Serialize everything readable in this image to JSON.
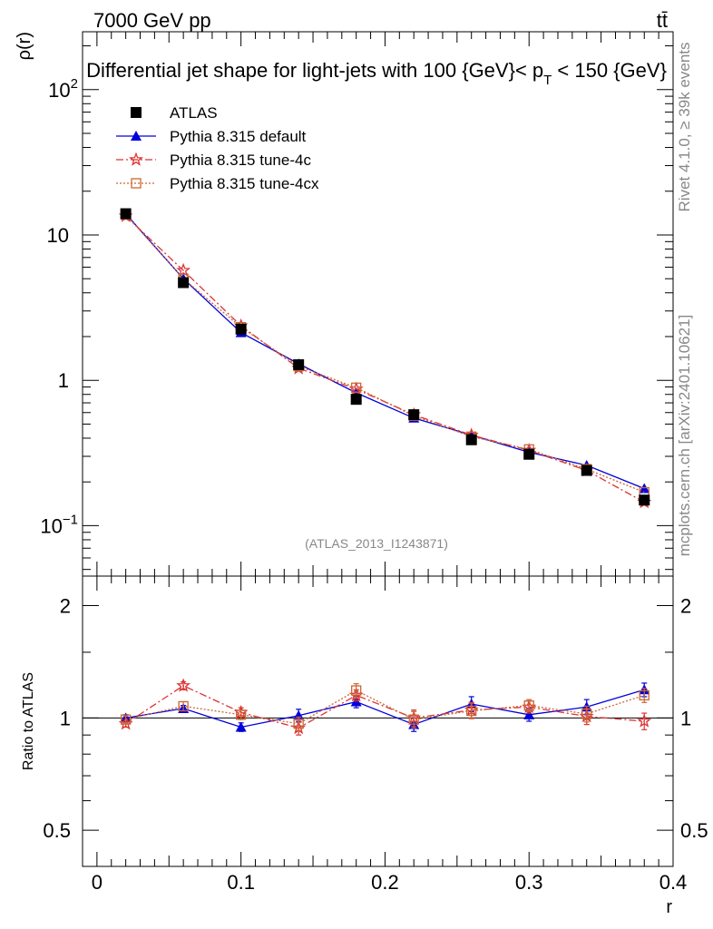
{
  "header": {
    "energy_label": "7000 GeV pp",
    "process_label": "tt̄"
  },
  "side": {
    "rivet_label": "Rivet 4.1.0, ≥ 39k events",
    "mcplots_label": "mcplots.cern.ch [arXiv:2401.10621]"
  },
  "chart_data": [
    {
      "type": "line",
      "title": "Differential jet shape for light-jets with 100 {GeV}< p_T < 150 {GeV}",
      "title_parts": {
        "main": "Differential jet shape for light-jets with 100 {GeV}< p",
        "sub": "T",
        "tail": " < 150 {GeV}"
      },
      "ylabel": "ρ(r)",
      "xlabel": "r",
      "yscale": "log",
      "xlim": [
        -0.01,
        0.4
      ],
      "ylim": [
        0.045,
        250
      ],
      "yticks": [
        {
          "value": 100,
          "label": "10",
          "sup": "2"
        },
        {
          "value": 10,
          "label": "10",
          "sup": ""
        },
        {
          "value": 1,
          "label": "1",
          "sup": ""
        },
        {
          "value": 0.1,
          "label": "10",
          "sup": "−1"
        }
      ],
      "watermark": "(ATLAS_2013_I1243871)",
      "x": [
        0.02,
        0.06,
        0.1,
        0.14,
        0.18,
        0.22,
        0.26,
        0.3,
        0.34,
        0.38
      ],
      "series": [
        {
          "name": "ATLAS",
          "color": "#000000",
          "marker": "square",
          "values": [
            14.0,
            4.7,
            2.25,
            1.28,
            0.74,
            0.58,
            0.39,
            0.31,
            0.24,
            0.15
          ]
        },
        {
          "name": "Pythia 8.315 default",
          "color": "#0000dd",
          "marker": "triangle",
          "values": [
            14.0,
            5.0,
            2.13,
            1.3,
            0.82,
            0.55,
            0.42,
            0.32,
            0.26,
            0.18
          ]
        },
        {
          "name": "Pythia 8.315 tune-4c",
          "color": "#dd3333",
          "marker": "star",
          "values": [
            13.5,
            5.7,
            2.37,
            1.21,
            0.87,
            0.58,
            0.42,
            0.33,
            0.24,
            0.145
          ]
        },
        {
          "name": "Pythia 8.315 tune-4cx",
          "color": "#cc6633",
          "marker": "open-square",
          "values": [
            13.8,
            5.0,
            2.32,
            1.25,
            0.89,
            0.57,
            0.41,
            0.335,
            0.245,
            0.17
          ]
        }
      ],
      "legend": [
        "ATLAS",
        "Pythia 8.315 default",
        "Pythia 8.315 tune-4c",
        "Pythia 8.315 tune-4cx"
      ]
    },
    {
      "type": "line",
      "title": "",
      "ylabel": "Ratio to ATLAS",
      "xlabel": "r",
      "yscale": "log",
      "ylim": [
        0.4,
        2.4
      ],
      "yticks": [
        {
          "value": 2,
          "label": "2"
        },
        {
          "value": 1,
          "label": "1"
        },
        {
          "value": 0.5,
          "label": "0.5"
        }
      ],
      "xticks": [
        {
          "value": 0,
          "label": "0"
        },
        {
          "value": 0.1,
          "label": "0.1"
        },
        {
          "value": 0.2,
          "label": "0.2"
        },
        {
          "value": 0.3,
          "label": "0.3"
        },
        {
          "value": 0.4,
          "label": "0.4"
        }
      ],
      "x": [
        0.02,
        0.06,
        0.1,
        0.14,
        0.18,
        0.22,
        0.26,
        0.3,
        0.34,
        0.38
      ],
      "series": [
        {
          "name": "Pythia 8.315 default",
          "color": "#0000dd",
          "marker": "triangle",
          "values": [
            1.0,
            1.06,
            0.945,
            1.015,
            1.105,
            0.96,
            1.09,
            1.02,
            1.07,
            1.19
          ],
          "errors": [
            0.02,
            0.02,
            0.025,
            0.04,
            0.04,
            0.04,
            0.05,
            0.04,
            0.05,
            0.05
          ]
        },
        {
          "name": "Pythia 8.315 tune-4c",
          "color": "#dd3333",
          "marker": "star",
          "values": [
            0.965,
            1.22,
            1.035,
            0.94,
            1.15,
            1.0,
            1.05,
            1.07,
            1.01,
            0.98
          ],
          "errors": [
            0.02,
            0.03,
            0.03,
            0.04,
            0.04,
            0.05,
            0.05,
            0.04,
            0.05,
            0.05
          ]
        },
        {
          "name": "Pythia 8.315 tune-4cx",
          "color": "#cc6633",
          "marker": "open-square",
          "values": [
            0.99,
            1.075,
            1.02,
            0.965,
            1.185,
            0.99,
            1.045,
            1.08,
            1.025,
            1.15
          ],
          "errors": [
            0.02,
            0.03,
            0.03,
            0.04,
            0.05,
            0.05,
            0.05,
            0.04,
            0.05,
            0.05
          ]
        }
      ]
    }
  ]
}
